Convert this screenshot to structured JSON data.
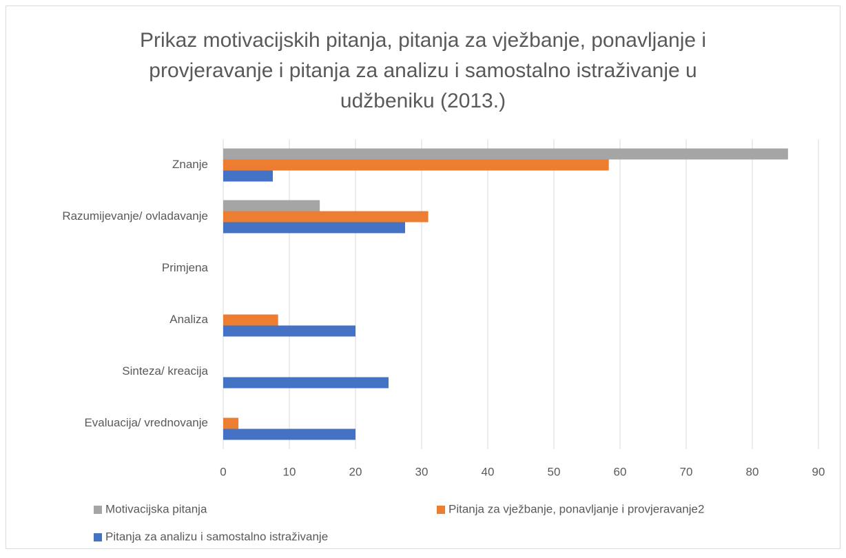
{
  "chart_data": {
    "type": "bar",
    "orientation": "horizontal",
    "title": [
      "Prikaz motivacijskih pitanja, pitanja za vježbanje, ponavljanje i",
      "provjeravanje i pitanja za analizu i samostalno istraživanje u",
      "udžbeniku (2013.)"
    ],
    "categories": [
      "Znanje",
      "Razumijevanje/ ovladavanje",
      "Primjena",
      "Analiza",
      "Sinteza/ kreacija",
      "Evaluacija/ vrednovanje"
    ],
    "series": [
      {
        "name": "Motivacijska pitanja",
        "color": "#a5a5a5",
        "values": [
          85.4,
          14.6,
          0,
          0,
          0,
          0
        ]
      },
      {
        "name": "Pitanja za vježbanje, ponavljanje i provjeravanje2",
        "color": "#ed7d31",
        "values": [
          58.3,
          31,
          0,
          8.3,
          0,
          2.3
        ]
      },
      {
        "name": "Pitanja za analizu i samostalno istraživanje",
        "color": "#4472c4",
        "values": [
          7.5,
          27.5,
          0,
          20,
          25,
          20
        ]
      }
    ],
    "xlim": [
      0,
      90
    ],
    "xticks": [
      0,
      10,
      20,
      30,
      40,
      50,
      60,
      70,
      80,
      90
    ],
    "grid": true,
    "legend": "bottom"
  }
}
